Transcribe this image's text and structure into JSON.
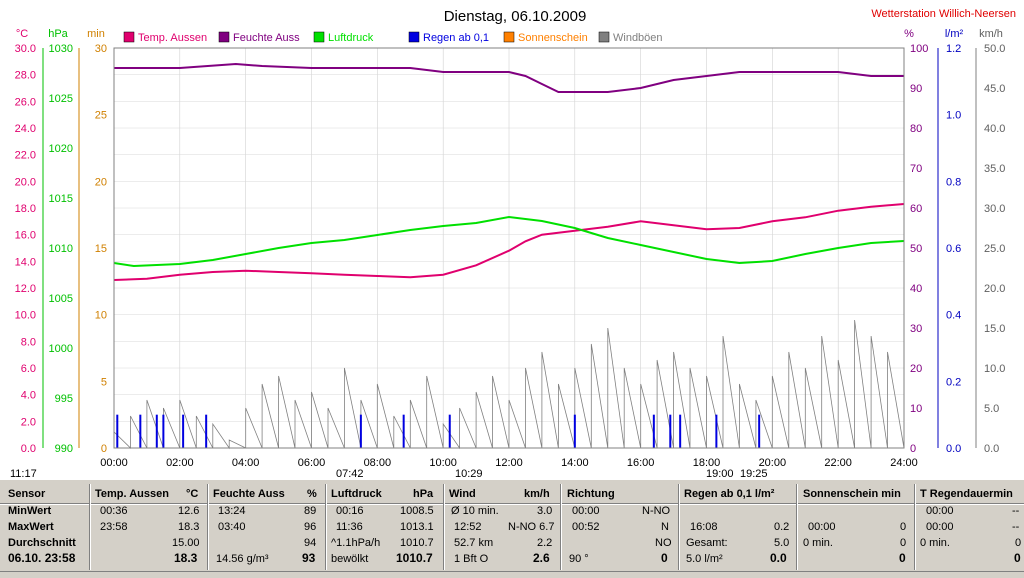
{
  "chart_data": {
    "type": "line",
    "title": "Dienstag, 06.10.2009",
    "station": "Wetterstation Willich-Neersen",
    "legend": [
      {
        "name": "Temp. Aussen",
        "color": "#e0006e"
      },
      {
        "name": "Feuchte Auss",
        "color": "#800080"
      },
      {
        "name": "Luftdruck",
        "color": "#00e000"
      },
      {
        "name": "Regen ab 0,1",
        "color": "#0000e0"
      },
      {
        "name": "Sonnenschein",
        "color": "#ff8000"
      },
      {
        "name": "Windböen",
        "color": "#808080"
      }
    ],
    "axes": {
      "temp": {
        "unit": "°C",
        "color": "#e0006e",
        "min": 0,
        "max": 30,
        "ticks": [
          "0.0",
          "2.0",
          "4.0",
          "6.0",
          "8.0",
          "10.0",
          "12.0",
          "14.0",
          "16.0",
          "18.0",
          "20.0",
          "22.0",
          "24.0",
          "26.0",
          "28.0",
          "30.0"
        ]
      },
      "pressure": {
        "unit": "hPa",
        "color": "#00c000",
        "min": 990,
        "max": 1030,
        "ticks": [
          "990",
          "995",
          "1000",
          "1005",
          "1010",
          "1015",
          "1020",
          "1025",
          "1030"
        ]
      },
      "sunmin": {
        "unit": "min",
        "color": "#d08000",
        "min": 0,
        "max": 30,
        "ticks": [
          "0",
          "5",
          "10",
          "15",
          "20",
          "25",
          "30"
        ]
      },
      "humidity": {
        "unit": "%",
        "color": "#800080",
        "min": 0,
        "max": 100,
        "ticks": [
          "0",
          "10",
          "20",
          "30",
          "40",
          "50",
          "60",
          "70",
          "80",
          "90",
          "100"
        ]
      },
      "rain": {
        "unit": "l/m²",
        "color": "#0000c0",
        "min": 0,
        "max": 1.2,
        "ticks": [
          "0.0",
          "0.2",
          "0.4",
          "0.6",
          "0.8",
          "1.0",
          "1.2"
        ]
      },
      "wind": {
        "unit": "km/h",
        "color": "#606060",
        "min": 0,
        "max": 50,
        "ticks": [
          "0.0",
          "5.0",
          "10.0",
          "15.0",
          "20.0",
          "25.0",
          "30.0",
          "35.0",
          "40.0",
          "45.0",
          "50.0"
        ]
      }
    },
    "x_ticks": [
      "00:00",
      "02:00",
      "04:00",
      "06:00",
      "08:00",
      "10:00",
      "12:00",
      "14:00",
      "16:00",
      "18:00",
      "20:00",
      "22:00",
      "24:00"
    ],
    "x_range": [
      0,
      24
    ],
    "sun_markers": [
      "11:17",
      "07:42",
      "10:29",
      "19:00",
      "19:25"
    ],
    "series": [
      {
        "name": "Temp. Aussen",
        "axis": "temp",
        "color": "#e0006e",
        "x": [
          0,
          1,
          2,
          3,
          4,
          5,
          6,
          7,
          8,
          9,
          10,
          11,
          12,
          12.5,
          13,
          14,
          15,
          16,
          17,
          18,
          19,
          20,
          21,
          22,
          23,
          24
        ],
        "y": [
          12.6,
          12.7,
          13,
          13.2,
          13.3,
          13.2,
          13.1,
          13,
          12.9,
          12.8,
          13,
          13.7,
          14.8,
          15.5,
          16,
          16.3,
          16.6,
          17,
          16.7,
          16.4,
          16.5,
          17,
          17.3,
          17.8,
          18.1,
          18.3
        ]
      },
      {
        "name": "Feuchte Auss",
        "axis": "humidity",
        "color": "#800080",
        "x": [
          0,
          2,
          3.7,
          4.5,
          6,
          7,
          9,
          10,
          12,
          12.5,
          13,
          13.5,
          14,
          15,
          16,
          17,
          18,
          19,
          20,
          21,
          22,
          23,
          24
        ],
        "y": [
          95,
          95,
          96,
          95.5,
          95,
          95,
          95,
          94,
          94,
          93,
          91,
          89,
          89,
          89,
          90,
          92,
          93,
          94,
          94,
          94,
          94,
          93,
          93
        ]
      },
      {
        "name": "Luftdruck",
        "axis": "pressure",
        "color": "#00e000",
        "x": [
          0,
          0.6,
          2,
          3,
          4,
          5,
          6,
          7,
          8,
          9,
          10,
          11,
          12,
          13,
          14,
          15,
          16,
          17,
          18,
          19,
          20,
          21,
          22,
          23,
          24
        ],
        "y": [
          1008.5,
          1008.2,
          1008.4,
          1008.8,
          1009.4,
          1010,
          1010.5,
          1010.8,
          1011.3,
          1011.8,
          1012.2,
          1012.5,
          1013.1,
          1012.7,
          1012,
          1011,
          1010.3,
          1009.6,
          1008.9,
          1008.5,
          1008.7,
          1009.4,
          1010,
          1010.5,
          1010.7
        ]
      },
      {
        "name": "Windböen",
        "axis": "wind",
        "color": "#808080",
        "x": [
          0,
          0.5,
          1,
          1.5,
          2,
          2.5,
          3,
          3.5,
          4,
          4.5,
          5,
          5.5,
          6,
          6.5,
          7,
          7.5,
          8,
          8.5,
          9,
          9.5,
          10,
          10.5,
          11,
          11.5,
          12,
          12.5,
          13,
          13.5,
          14,
          14.5,
          15,
          15.5,
          16,
          16.5,
          17,
          17.5,
          18,
          18.5,
          19,
          19.5,
          20,
          20.5,
          21,
          21.5,
          22,
          22.5,
          23,
          23.5,
          24
        ],
        "y": [
          2,
          4,
          6,
          5,
          6,
          4,
          3,
          1,
          5,
          8,
          9,
          6,
          7,
          5,
          10,
          6,
          8,
          4,
          6,
          9,
          3,
          5,
          7,
          9,
          6,
          10,
          12,
          8,
          10,
          13,
          15,
          10,
          8,
          11,
          12,
          10,
          9,
          14,
          8,
          6,
          9,
          12,
          10,
          14,
          11,
          16,
          14,
          12,
          22
        ]
      }
    ],
    "rain_hours": [
      0.1,
      0.8,
      1.3,
      1.5,
      2.1,
      2.8,
      7.5,
      8.8,
      10.2,
      14,
      16.4,
      16.9,
      17.2,
      18.3,
      19.6
    ]
  },
  "panel": {
    "sensor": {
      "header": "Sensor",
      "r1": "MinWert",
      "r2": "MaxWert",
      "r3": "Durchschnitt",
      "r4": "06.10. 23:58"
    },
    "temp": {
      "header": "Temp. Aussen",
      "unit": "°C",
      "min_t": "00:36",
      "min_v": "12.6",
      "max_t": "23:58",
      "max_v": "18.3",
      "avg_t": "15.00",
      "cur": "18.3"
    },
    "feuchte": {
      "header": "Feuchte Auss",
      "unit": "%",
      "min_t": "13:24",
      "min_v": "89",
      "max_t": "03:40",
      "max_v": "96",
      "avg_v": "94",
      "abs": "14.56 g/m³",
      "cur": "93"
    },
    "druck": {
      "header": "Luftdruck",
      "unit": "hPa",
      "min_t": "00:16",
      "min_v": "1008.5",
      "max_t": "11:36",
      "max_v": "1013.1",
      "trend": "^1.1hPa/h",
      "trend_v": "1010.7",
      "sky": "bewölkt",
      "cur": "1010.7"
    },
    "wind": {
      "header": "Wind",
      "unit": "km/h",
      "r1a": "Ø 10 min.",
      "r1b": "3.0",
      "r2a": "12:52",
      "r2b": "N-NO 6.7",
      "r3a": "52.7 km",
      "r3b": "2.2",
      "r4a": "1 Bft O",
      "r4b": "2.6"
    },
    "richtung": {
      "header": "Richtung",
      "r1a": "00:00",
      "r1b": "N-NO",
      "r2a": "00:52",
      "r2b": "N",
      "r3b": "NO",
      "r4a": "90 °",
      "r4b": "0"
    },
    "regen": {
      "header": "Regen ab 0,1  l/m²",
      "r2a": "16:08",
      "r2b": "0.2",
      "r3a": "Gesamt:",
      "r3b": "5.0",
      "r4a": "5.0 l/m²",
      "r4b": "0.0"
    },
    "sonne": {
      "header": "Sonnenschein min",
      "r2a": "00:00",
      "r2b": "0",
      "r3a": "0 min.",
      "r3b": "0",
      "r4b": "0"
    },
    "regendauer": {
      "header": "T Regendauermin",
      "r1a": "00:00",
      "r1b": "--",
      "r2a": "00:00",
      "r2b": "--",
      "r3a": "0 min.",
      "r3b": "0",
      "r4b": "0"
    }
  }
}
